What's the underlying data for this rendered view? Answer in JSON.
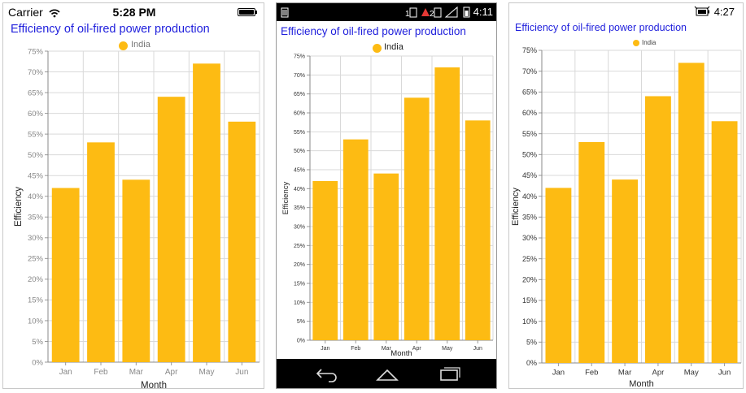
{
  "colors": {
    "bar": "#FDBB13",
    "title": "#1F1FDC",
    "grid": "#d9d9d9",
    "axis": "#666666"
  },
  "ios": {
    "carrier": "Carrier",
    "time": "5:28 PM",
    "icons": [
      "wifi-icon",
      "battery-icon"
    ]
  },
  "android": {
    "time": "4:11",
    "icons": [
      "sim-icon",
      "signal-icon",
      "battery-icon"
    ],
    "nav": [
      "back-icon",
      "home-icon",
      "recents-icon"
    ]
  },
  "windows": {
    "time": "4:27",
    "icons": [
      "battery-icon"
    ]
  },
  "chart_data": {
    "type": "bar",
    "title": "Efficiency of oil-fired power production",
    "categories": [
      "Jan",
      "Feb",
      "Mar",
      "Apr",
      "May",
      "Jun"
    ],
    "ios_categories": [
      "Jan",
      "Feb",
      "Mar",
      "Apr",
      "May",
      "Jun"
    ],
    "series": [
      {
        "name": "India",
        "values": [
          42,
          53,
          44,
          64,
          72,
          58
        ]
      }
    ],
    "xlabel": "Month",
    "ylabel": "Efficiency",
    "ylim": [
      0,
      75
    ],
    "ystep": 5,
    "ytick_format": "{v}%",
    "grid": true,
    "legend": "top-center"
  }
}
